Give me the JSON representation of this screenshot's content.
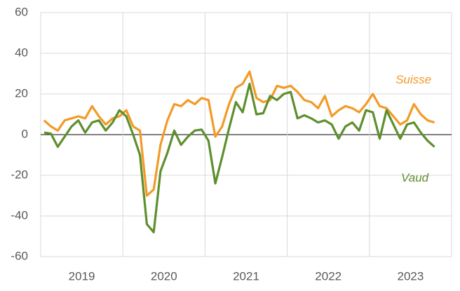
{
  "chart_data": {
    "type": "line",
    "categories": [
      null,
      null,
      null,
      null,
      null,
      null,
      null,
      null,
      null,
      null,
      null,
      null,
      null,
      null,
      null,
      null,
      null,
      null,
      null,
      null,
      null,
      null,
      null,
      null,
      null,
      null,
      null,
      null,
      null,
      null,
      null,
      null,
      null,
      null,
      null,
      null,
      null,
      null,
      null,
      null,
      null,
      null,
      null,
      null,
      null,
      null,
      null,
      null,
      null,
      null,
      null,
      null,
      null,
      null,
      null,
      null,
      null,
      null,
      null,
      null
    ],
    "year_labels": [
      "2019",
      "2020",
      "2021",
      "2022",
      "2023"
    ],
    "series": [
      {
        "name": "Suisse",
        "color": "#f39a26",
        "values": [
          7,
          4,
          2,
          7,
          8,
          9,
          8,
          14,
          9,
          5,
          8,
          9,
          12,
          4,
          2,
          -30,
          -27,
          -5,
          7,
          15,
          14,
          17,
          15,
          18,
          17,
          -1,
          4,
          15,
          23,
          25,
          31,
          18,
          16,
          17,
          24,
          23,
          24,
          21,
          17,
          16,
          13,
          19,
          9,
          12,
          14,
          13,
          11,
          15,
          20,
          14,
          13,
          9,
          5,
          7,
          15,
          10,
          7,
          6,
          null,
          null
        ]
      },
      {
        "name": "Vaud",
        "color": "#5e8f2e",
        "values": [
          1,
          0.5,
          -6,
          -1,
          4,
          7,
          1,
          6,
          7,
          2,
          6,
          12,
          9,
          0,
          -10,
          -44,
          -48,
          -18,
          -9,
          2,
          -5,
          -1,
          2,
          2.5,
          -3,
          -24,
          -11,
          3,
          16,
          11,
          25,
          10,
          10.5,
          19,
          17,
          20,
          21,
          8,
          9.5,
          8,
          6,
          7,
          5,
          -2,
          4,
          6,
          2,
          12,
          11,
          -2,
          12,
          5,
          -2,
          5,
          6,
          1,
          -3,
          -6,
          null,
          null
        ]
      }
    ],
    "ylim": [
      -60,
      60
    ],
    "yticks": [
      -60,
      -40,
      -20,
      0,
      20,
      40,
      60
    ],
    "grid": true
  }
}
